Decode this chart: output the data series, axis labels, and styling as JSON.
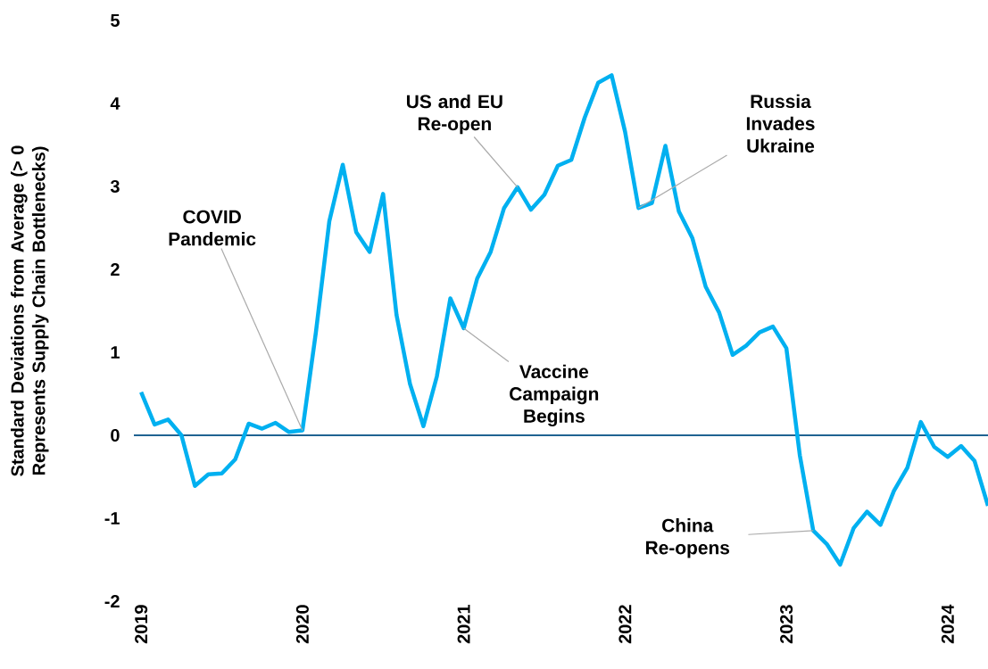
{
  "chart_data": {
    "type": "line",
    "ylabel": "Standard Deviations from Average (> 0 Represents Supply Chain Bottlenecks)",
    "x": [
      "2019-01",
      "2019-02",
      "2019-03",
      "2019-04",
      "2019-05",
      "2019-06",
      "2019-07",
      "2019-08",
      "2019-09",
      "2019-10",
      "2019-11",
      "2019-12",
      "2020-01",
      "2020-02",
      "2020-03",
      "2020-04",
      "2020-05",
      "2020-06",
      "2020-07",
      "2020-08",
      "2020-09",
      "2020-10",
      "2020-11",
      "2020-12",
      "2021-01",
      "2021-02",
      "2021-03",
      "2021-04",
      "2021-05",
      "2021-06",
      "2021-07",
      "2021-08",
      "2021-09",
      "2021-10",
      "2021-11",
      "2021-12",
      "2022-01",
      "2022-02",
      "2022-03",
      "2022-04",
      "2022-05",
      "2022-06",
      "2022-07",
      "2022-08",
      "2022-09",
      "2022-10",
      "2022-11",
      "2022-12",
      "2023-01",
      "2023-02",
      "2023-03",
      "2023-04",
      "2023-05",
      "2023-06",
      "2023-07",
      "2023-08",
      "2023-09",
      "2023-10",
      "2023-11",
      "2023-12",
      "2024-01",
      "2024-02",
      "2024-03",
      "2024-04"
    ],
    "series": [
      {
        "color": "#00b0f0",
        "values": [
          0.52,
          0.13,
          0.19,
          0.0,
          -0.61,
          -0.47,
          -0.46,
          -0.29,
          0.14,
          0.08,
          0.15,
          0.04,
          0.06,
          1.24,
          2.58,
          3.26,
          2.45,
          2.21,
          2.91,
          1.45,
          0.62,
          0.11,
          0.71,
          1.65,
          1.29,
          1.89,
          2.21,
          2.74,
          2.99,
          2.72,
          2.9,
          3.25,
          3.32,
          3.83,
          4.25,
          4.34,
          3.66,
          2.74,
          2.8,
          3.49,
          2.7,
          2.38,
          1.79,
          1.48,
          0.97,
          1.08,
          1.24,
          1.31,
          1.05,
          -0.24,
          -1.15,
          -1.31,
          -1.56,
          -1.12,
          -0.92,
          -1.08,
          -0.67,
          -0.39,
          0.16,
          -0.14,
          -0.26,
          -0.13,
          -0.31,
          -0.85
        ]
      }
    ],
    "xlim": [
      "2018-12-15",
      "2024-04"
    ],
    "xticks": [
      "2019",
      "2020",
      "2021",
      "2022",
      "2023",
      "2024"
    ],
    "ylim": [
      -2,
      5
    ],
    "yticks": [
      -2,
      -1,
      0,
      1,
      2,
      3,
      4,
      5
    ],
    "ref_lines": [
      {
        "axis": "y",
        "value": 0,
        "color": "#1f6391"
      }
    ],
    "annotations": [
      {
        "text": "COVID Pandemic",
        "x": "2020-01",
        "y": 0.06
      },
      {
        "text": "Vaccine Campaign Begins",
        "x": "2021-01",
        "y": 1.29
      },
      {
        "text": "US and EU Re-open",
        "x": "2021-05",
        "y": 2.99
      },
      {
        "text": "Russia Invades Ukraine",
        "x": "2022-02",
        "y": 2.74
      },
      {
        "text": "China Re-opens",
        "x": "2023-03",
        "y": -1.15
      }
    ],
    "grid": false,
    "marker": "none",
    "line_style": "solid"
  }
}
